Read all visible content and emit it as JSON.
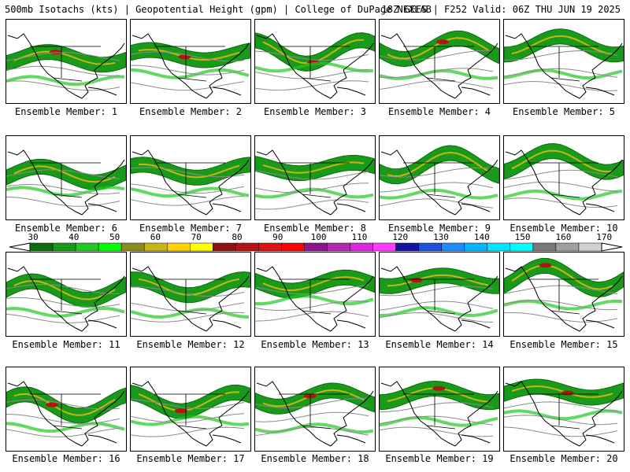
{
  "header": {
    "title": "500mb Isotachs (kts) | Geopotential Height (gpm) | College of DuPage NEXLAB",
    "run": "18Z GEFS | F252 Valid: 06Z THU JUN 19 2025"
  },
  "members": [
    {
      "label": "Ensemble Member: 1"
    },
    {
      "label": "Ensemble Member: 2"
    },
    {
      "label": "Ensemble Member: 3"
    },
    {
      "label": "Ensemble Member: 4"
    },
    {
      "label": "Ensemble Member: 5"
    },
    {
      "label": "Ensemble Member: 6"
    },
    {
      "label": "Ensemble Member: 7"
    },
    {
      "label": "Ensemble Member: 8"
    },
    {
      "label": "Ensemble Member: 9"
    },
    {
      "label": "Ensemble Member: 10"
    },
    {
      "label": "Ensemble Member: 11"
    },
    {
      "label": "Ensemble Member: 12"
    },
    {
      "label": "Ensemble Member: 13"
    },
    {
      "label": "Ensemble Member: 14"
    },
    {
      "label": "Ensemble Member: 15"
    },
    {
      "label": "Ensemble Member: 16"
    },
    {
      "label": "Ensemble Member: 17"
    },
    {
      "label": "Ensemble Member: 18"
    },
    {
      "label": "Ensemble Member: 19"
    },
    {
      "label": "Ensemble Member: 20"
    }
  ],
  "colorbar": {
    "labels": [
      "30",
      "40",
      "50",
      "60",
      "70",
      "80",
      "90",
      "100",
      "110",
      "120",
      "130",
      "140",
      "150",
      "160",
      "170"
    ],
    "colors": [
      "#0a6e0a",
      "#1a9a1a",
      "#22c822",
      "#00ff00",
      "#8c8c1e",
      "#c8b414",
      "#ffd200",
      "#ffff00",
      "#8c1414",
      "#b41414",
      "#dc1414",
      "#ff0000",
      "#8c148c",
      "#b428b4",
      "#dc28dc",
      "#ff3cff",
      "#1414a0",
      "#1e50dc",
      "#1e8cff",
      "#00b4ff",
      "#00e6ff",
      "#00ffff",
      "#787878",
      "#a0a0a0",
      "#d2d2d2"
    ]
  }
}
